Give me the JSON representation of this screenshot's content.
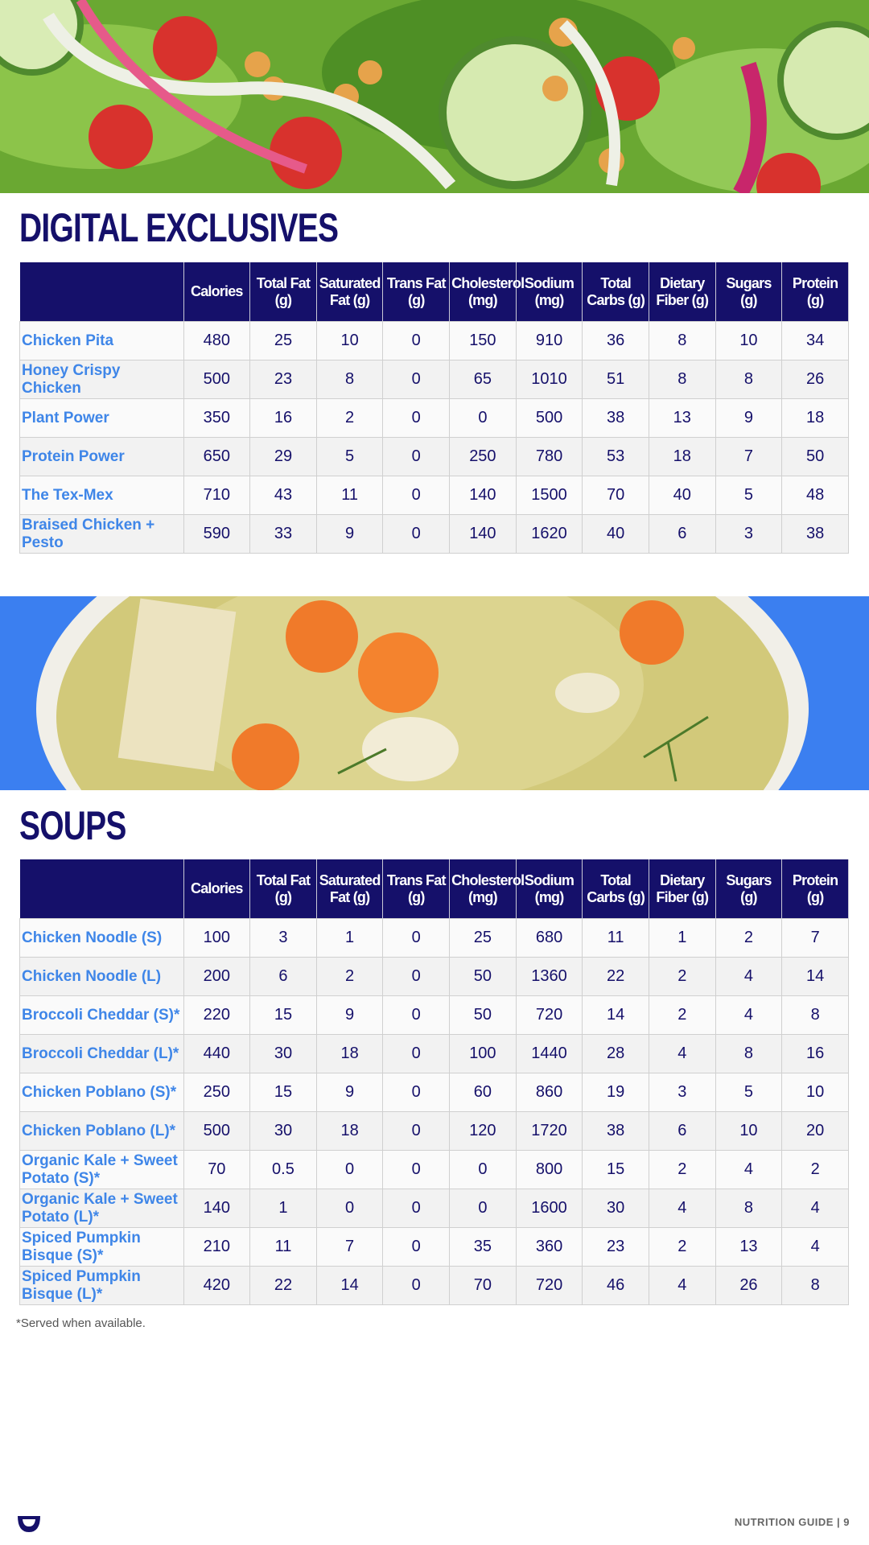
{
  "digital_exclusives": {
    "title": "DIGITAL EXCLUSIVES",
    "columns": [
      "Calories",
      "Total Fat (g)",
      "Saturated Fat (g)",
      "Trans Fat (g)",
      "Cholesterol (mg)",
      "Sodium (mg)",
      "Total Carbs (g)",
      "Dietary Fiber (g)",
      "Sugars (g)",
      "Protein (g)"
    ],
    "rows": [
      {
        "name": "Chicken Pita",
        "values": [
          480,
          25,
          10,
          0,
          150,
          910,
          36,
          8,
          10,
          34
        ]
      },
      {
        "name": "Honey Crispy Chicken",
        "values": [
          500,
          23,
          8,
          0,
          65,
          1010,
          51,
          8,
          8,
          26
        ]
      },
      {
        "name": "Plant Power",
        "values": [
          350,
          16,
          2,
          0,
          0,
          500,
          38,
          13,
          9,
          18
        ]
      },
      {
        "name": "Protein Power",
        "values": [
          650,
          29,
          5,
          0,
          250,
          780,
          53,
          18,
          7,
          50
        ]
      },
      {
        "name": "The Tex-Mex",
        "values": [
          710,
          43,
          11,
          0,
          140,
          1500,
          70,
          40,
          5,
          48
        ]
      },
      {
        "name": "Braised Chicken + Pesto",
        "values": [
          590,
          33,
          9,
          0,
          140,
          1620,
          40,
          6,
          3,
          38
        ]
      }
    ]
  },
  "soups": {
    "title": "SOUPS",
    "columns": [
      "Calories",
      "Total Fat (g)",
      "Saturated Fat (g)",
      "Trans Fat (g)",
      "Cholesterol (mg)",
      "Sodium (mg)",
      "Total Carbs (g)",
      "Dietary Fiber (g)",
      "Sugars (g)",
      "Protein (g)"
    ],
    "rows": [
      {
        "name": "Chicken Noodle (S)",
        "values": [
          100,
          3,
          1,
          0,
          25,
          680,
          11,
          1,
          2,
          7
        ]
      },
      {
        "name": "Chicken Noodle (L)",
        "values": [
          200,
          6,
          2,
          0,
          50,
          1360,
          22,
          2,
          4,
          14
        ]
      },
      {
        "name": "Broccoli Cheddar (S)*",
        "values": [
          220,
          15,
          9,
          0,
          50,
          720,
          14,
          2,
          4,
          8
        ]
      },
      {
        "name": "Broccoli Cheddar (L)*",
        "values": [
          440,
          30,
          18,
          0,
          100,
          1440,
          28,
          4,
          8,
          16
        ]
      },
      {
        "name": "Chicken Poblano (S)*",
        "values": [
          250,
          15,
          9,
          0,
          60,
          860,
          19,
          3,
          5,
          10
        ]
      },
      {
        "name": "Chicken Poblano (L)*",
        "values": [
          500,
          30,
          18,
          0,
          120,
          1720,
          38,
          6,
          10,
          20
        ]
      },
      {
        "name": "Organic Kale + Sweet Potato (S)*",
        "values": [
          70,
          0.5,
          0,
          0,
          0,
          800,
          15,
          2,
          4,
          2
        ]
      },
      {
        "name": "Organic Kale + Sweet Potato (L)*",
        "values": [
          140,
          1,
          0,
          0,
          0,
          1600,
          30,
          4,
          8,
          4
        ]
      },
      {
        "name": "Spiced Pumpkin Bisque (S)*",
        "values": [
          210,
          11,
          7,
          0,
          35,
          360,
          23,
          2,
          13,
          4
        ]
      },
      {
        "name": "Spiced Pumpkin Bisque (L)*",
        "values": [
          420,
          22,
          14,
          0,
          70,
          720,
          46,
          4,
          26,
          8
        ]
      }
    ]
  },
  "footnote": "*Served when available.",
  "footer": "NUTRITION GUIDE | 9"
}
